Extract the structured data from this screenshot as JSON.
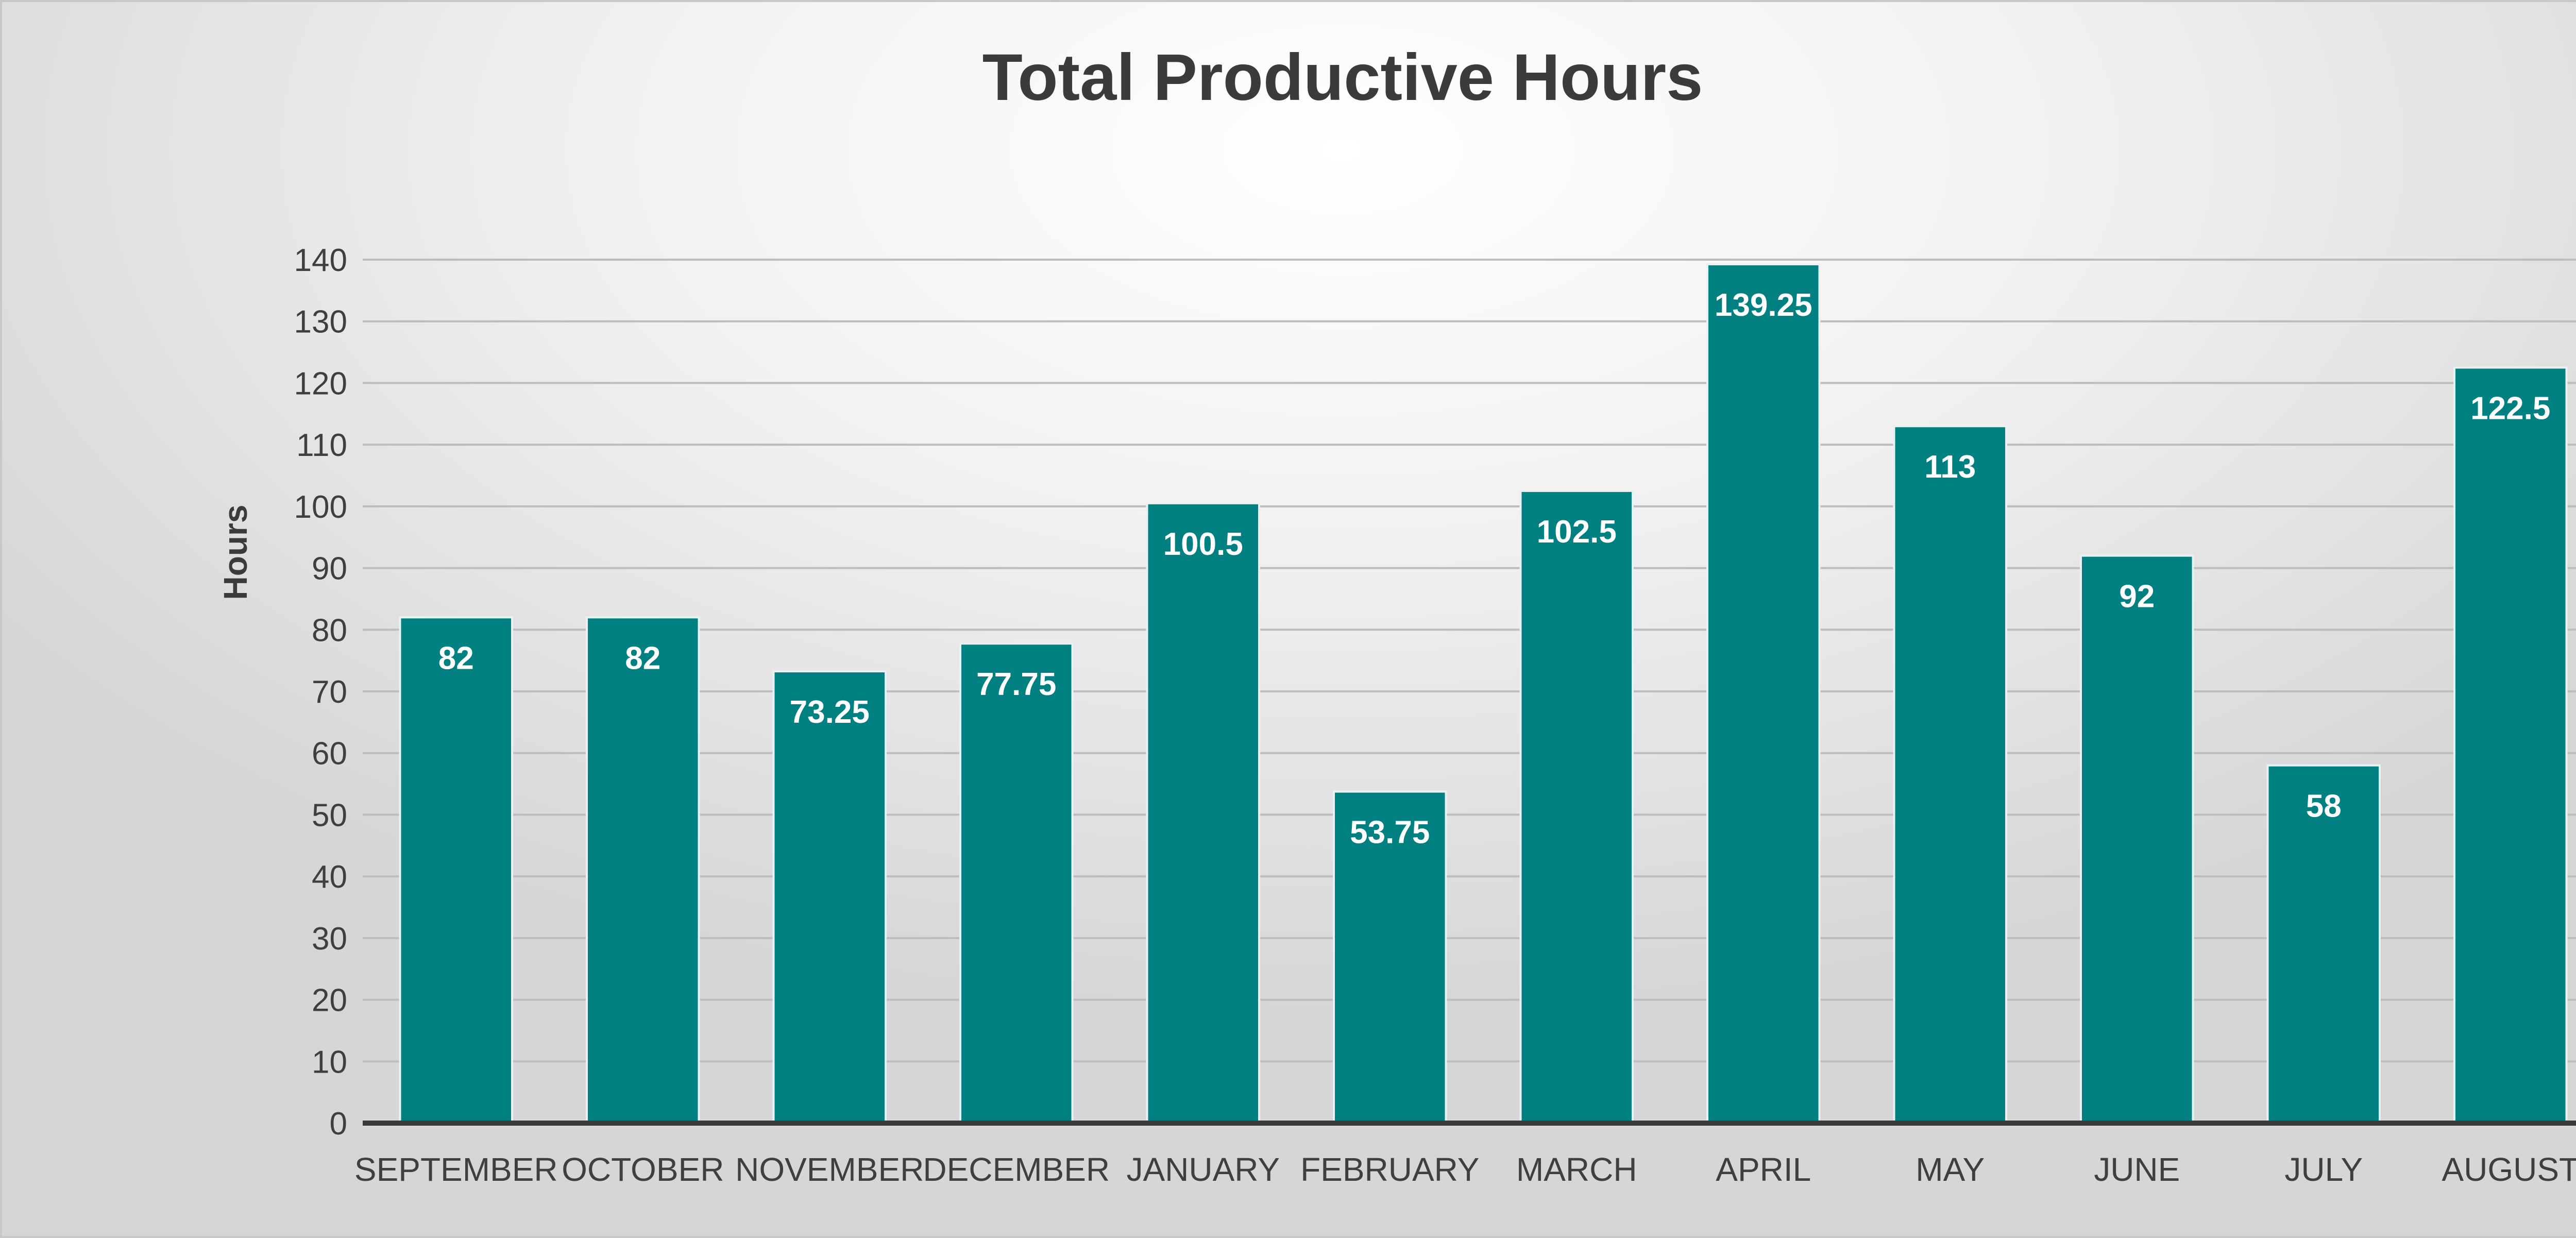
{
  "chart_data": {
    "type": "bar",
    "title": "Total Productive Hours",
    "xlabel": "",
    "ylabel": "Hours",
    "categories": [
      "SEPTEMBER",
      "OCTOBER",
      "NOVEMBER",
      "DECEMBER",
      "JANUARY",
      "FEBRUARY",
      "MARCH",
      "APRIL",
      "MAY",
      "JUNE",
      "JULY",
      "AUGUST"
    ],
    "values": [
      82,
      82,
      73.25,
      77.75,
      100.5,
      53.75,
      102.5,
      139.25,
      113,
      92,
      58,
      122.5
    ],
    "data_labels": [
      "82",
      "82",
      "73.25",
      "77.75",
      "100.5",
      "53.75",
      "102.5",
      "139.25",
      "113",
      "92",
      "58",
      "122.5"
    ],
    "yticks": [
      0,
      10,
      20,
      30,
      40,
      50,
      60,
      70,
      80,
      90,
      100,
      110,
      120,
      130,
      140
    ],
    "ylim": [
      0,
      140
    ],
    "grid": true,
    "legend": "none",
    "colors": {
      "bar": "#008080",
      "bar_outline": "#e8f2f2",
      "gridline": "#bdbdbd",
      "baseline": "#3a3a3a",
      "text": "#3f3f3f",
      "data_label": "#ffffff"
    }
  }
}
